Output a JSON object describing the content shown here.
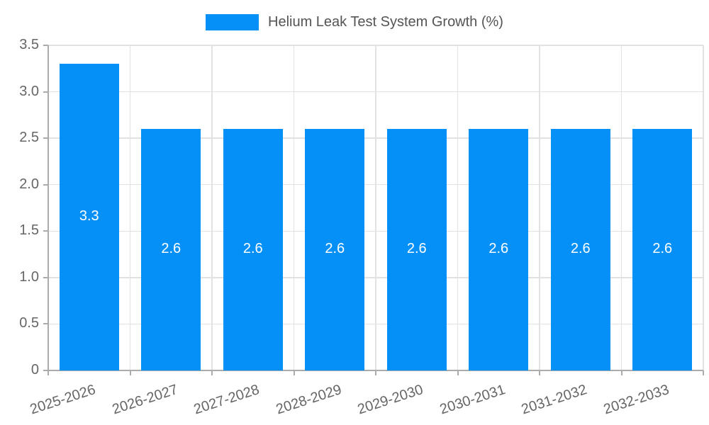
{
  "legend": {
    "label": "Helium Leak Test System Growth (%)"
  },
  "colors": {
    "bar": "#0590f8",
    "grid": "#e2e2e2",
    "axis": "#ababab",
    "tick_text": "#666666",
    "legend_text": "#545454",
    "bar_label": "#ffffff",
    "background": "#ffffff"
  },
  "chart_data": {
    "type": "bar",
    "title": "Helium Leak Test System Growth (%)",
    "categories": [
      "2025-2026",
      "2026-2027",
      "2027-2028",
      "2028-2029",
      "2029-2030",
      "2030-2031",
      "2031-2032",
      "2032-2033"
    ],
    "values": [
      3.3,
      2.6,
      2.6,
      2.6,
      2.6,
      2.6,
      2.6,
      2.6
    ],
    "value_labels": [
      "3.3",
      "2.6",
      "2.6",
      "2.6",
      "2.6",
      "2.6",
      "2.6",
      "2.6"
    ],
    "xlabel": "",
    "ylabel": "",
    "ylim": [
      0,
      3.5
    ],
    "yticks": [
      0,
      0.5,
      1,
      1.5,
      2,
      2.5,
      3,
      3.5
    ],
    "ytick_labels": [
      "0",
      "0.5",
      "1.0",
      "1.5",
      "2.0",
      "2.5",
      "3.0",
      "3.5"
    ],
    "grid": true,
    "legend_position": "top",
    "value_labels_position": "center-of-bar",
    "x_label_rotation_deg": -18
  }
}
